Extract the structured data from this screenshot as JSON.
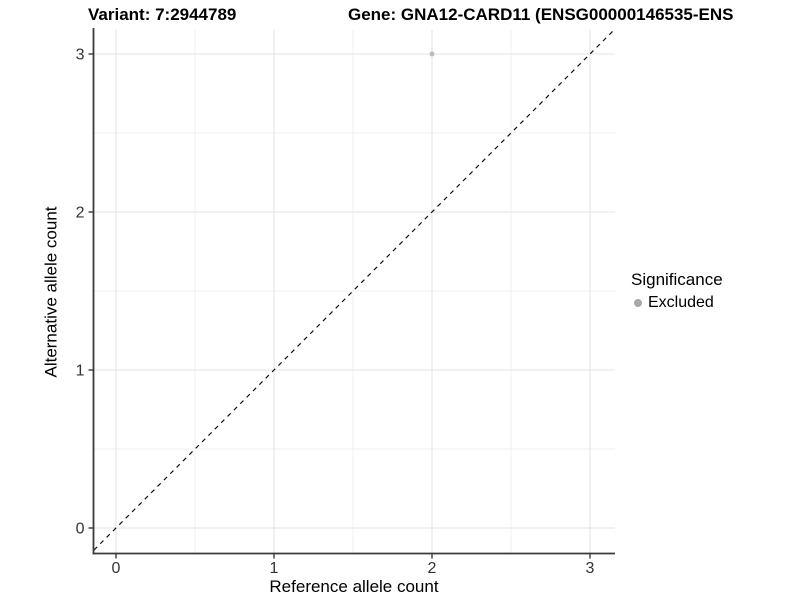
{
  "titles": {
    "variant": "Variant: 7:2944789",
    "gene": "Gene: GNA12-CARD11 (ENSG00000146535-ENS"
  },
  "axes": {
    "xlabel": "Reference allele count",
    "ylabel": "Alternative allele count"
  },
  "legend": {
    "title": "Significance",
    "items": [
      {
        "label": "Excluded",
        "color": "#a8a8a8"
      }
    ]
  },
  "colors": {
    "background": "#ffffff",
    "grid_major": "#e3e3e3",
    "grid_minor": "#f1f1f1",
    "axis_line": "#3a3a3a",
    "tick_text": "#333333",
    "point": "#b9b9b9",
    "ref_line": "#111111"
  },
  "chart_data": {
    "type": "scatter",
    "title_left": "Variant: 7:2944789",
    "title_right": "Gene: GNA12-CARD11 (ENSG00000146535-ENS",
    "xlabel": "Reference allele count",
    "ylabel": "Alternative allele count",
    "xlim": [
      -0.14,
      3.16
    ],
    "ylim": [
      -0.16,
      3.15
    ],
    "x_ticks": [
      0,
      1,
      2,
      3
    ],
    "y_ticks": [
      0,
      1,
      2,
      3
    ],
    "x_minor_ticks": [
      0.5,
      1.5,
      2.5
    ],
    "y_minor_ticks": [
      0.5,
      1.5,
      2.5
    ],
    "grid": "major+minor",
    "legend_position": "right",
    "legend_title": "Significance",
    "series": [
      {
        "name": "Excluded",
        "marker": "circle",
        "color": "#b9b9b9",
        "points": [
          {
            "x": 2,
            "y": 3
          }
        ]
      }
    ],
    "reference_line": {
      "kind": "identity y=x",
      "style": "dashed",
      "color": "#111111"
    }
  }
}
